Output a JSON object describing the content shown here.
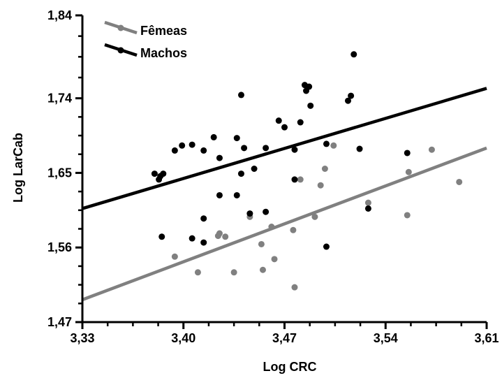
{
  "chart_data": {
    "type": "scatter",
    "title": "",
    "xlabel": "Log CRC",
    "ylabel": "Log LarCab",
    "xlim": [
      3.33,
      3.61
    ],
    "ylim": [
      1.47,
      1.84
    ],
    "x_ticks": [
      3.33,
      3.4,
      3.47,
      3.54,
      3.61
    ],
    "y_ticks": [
      1.47,
      1.56,
      1.65,
      1.74,
      1.84
    ],
    "x_tick_labels": [
      "3,33",
      "3,40",
      "3,47",
      "3,54",
      "3,61"
    ],
    "y_tick_labels": [
      "1,47",
      "1,56",
      "1,65",
      "1,74",
      "1,84"
    ],
    "legend_position": "top-left",
    "grid": false,
    "series": [
      {
        "name": "Fêmeas",
        "color": "#808080",
        "fit_line": {
          "x": [
            3.33,
            3.61
          ],
          "y": [
            1.497,
            1.68
          ]
        },
        "points": [
          [
            3.394,
            1.549
          ],
          [
            3.41,
            1.53
          ],
          [
            3.424,
            1.574
          ],
          [
            3.425,
            1.577
          ],
          [
            3.429,
            1.573
          ],
          [
            3.435,
            1.53
          ],
          [
            3.446,
            1.597
          ],
          [
            3.454,
            1.564
          ],
          [
            3.455,
            1.533
          ],
          [
            3.461,
            1.585
          ],
          [
            3.463,
            1.546
          ],
          [
            3.476,
            1.581
          ],
          [
            3.477,
            1.512
          ],
          [
            3.481,
            1.642
          ],
          [
            3.491,
            1.597
          ],
          [
            3.495,
            1.635
          ],
          [
            3.498,
            1.655
          ],
          [
            3.504,
            1.683
          ],
          [
            3.528,
            1.614
          ],
          [
            3.555,
            1.599
          ],
          [
            3.556,
            1.651
          ],
          [
            3.572,
            1.678
          ],
          [
            3.591,
            1.639
          ]
        ]
      },
      {
        "name": "Machos",
        "color": "#000000",
        "fit_line": {
          "x": [
            3.33,
            3.61
          ],
          "y": [
            1.607,
            1.752
          ]
        },
        "points": [
          [
            3.38,
            1.649
          ],
          [
            3.383,
            1.642
          ],
          [
            3.384,
            1.646
          ],
          [
            3.386,
            1.649
          ],
          [
            3.385,
            1.573
          ],
          [
            3.394,
            1.677
          ],
          [
            3.399,
            1.683
          ],
          [
            3.406,
            1.684
          ],
          [
            3.406,
            1.571
          ],
          [
            3.414,
            1.677
          ],
          [
            3.414,
            1.595
          ],
          [
            3.414,
            1.566
          ],
          [
            3.421,
            1.693
          ],
          [
            3.425,
            1.668
          ],
          [
            3.425,
            1.623
          ],
          [
            3.437,
            1.692
          ],
          [
            3.437,
            1.623
          ],
          [
            3.44,
            1.744
          ],
          [
            3.44,
            1.649
          ],
          [
            3.442,
            1.68
          ],
          [
            3.446,
            1.601
          ],
          [
            3.449,
            1.655
          ],
          [
            3.457,
            1.68
          ],
          [
            3.457,
            1.603
          ],
          [
            3.466,
            1.713
          ],
          [
            3.47,
            1.705
          ],
          [
            3.477,
            1.678
          ],
          [
            3.477,
            1.642
          ],
          [
            3.481,
            1.711
          ],
          [
            3.484,
            1.756
          ],
          [
            3.485,
            1.749
          ],
          [
            3.487,
            1.754
          ],
          [
            3.488,
            1.731
          ],
          [
            3.499,
            1.685
          ],
          [
            3.499,
            1.561
          ],
          [
            3.514,
            1.737
          ],
          [
            3.516,
            1.743
          ],
          [
            3.518,
            1.793
          ],
          [
            3.522,
            1.679
          ],
          [
            3.528,
            1.607
          ],
          [
            3.555,
            1.674
          ]
        ]
      }
    ]
  }
}
